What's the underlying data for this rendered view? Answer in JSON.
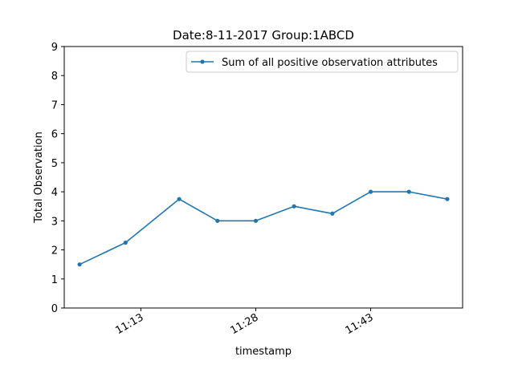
{
  "chart_data": {
    "type": "line",
    "title": "Date:8-11-2017  Group:1ABCD",
    "xlabel": "timestamp",
    "ylabel": "Total Observation",
    "ylim": [
      0,
      9
    ],
    "yticks": [
      0,
      1,
      2,
      3,
      4,
      5,
      6,
      7,
      8,
      9
    ],
    "xlim": [
      "11:03",
      "11:55"
    ],
    "xticks": [
      "11:13",
      "11:28",
      "11:43"
    ],
    "grid": false,
    "legend_position": "top-right",
    "series": [
      {
        "name": "Sum of all positive observation attributes",
        "color": "#1f77b4",
        "marker": "point",
        "x": [
          "11:05",
          "11:11",
          "11:18",
          "11:23",
          "11:28",
          "11:33",
          "11:38",
          "11:43",
          "11:48",
          "11:53"
        ],
        "y": [
          1.5,
          2.25,
          3.75,
          3.0,
          3.0,
          3.5,
          3.25,
          4.0,
          4.0,
          3.75
        ]
      }
    ]
  }
}
